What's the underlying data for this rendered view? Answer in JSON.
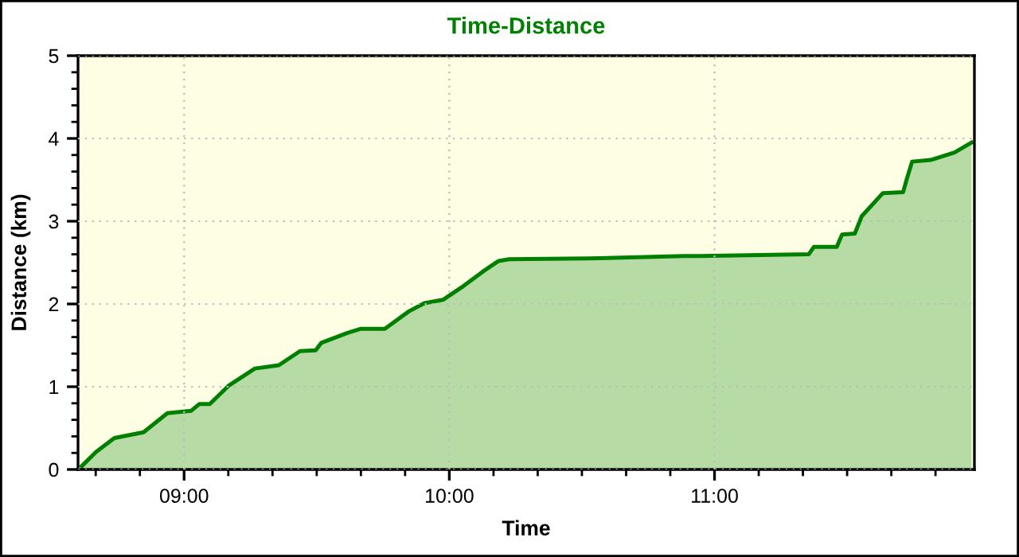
{
  "chart_data": {
    "type": "area",
    "title": "Time-Distance",
    "xlabel": "Time",
    "ylabel": "Distance (km)",
    "x": [
      8.614,
      8.667,
      8.737,
      8.847,
      8.937,
      9.027,
      9.057,
      9.097,
      9.167,
      9.267,
      9.357,
      9.437,
      9.496,
      9.517,
      9.616,
      9.667,
      9.757,
      9.847,
      9.906,
      9.976,
      10.046,
      10.126,
      10.186,
      10.226,
      10.526,
      10.886,
      10.945,
      11.355,
      11.375,
      11.461,
      11.481,
      11.529,
      11.555,
      11.635,
      11.711,
      11.725,
      11.745,
      11.815,
      11.905,
      11.969
    ],
    "series": [
      {
        "color": "#008000",
        "values": [
          0.04,
          0.21,
          0.38,
          0.45,
          0.68,
          0.71,
          0.79,
          0.79,
          1.01,
          1.22,
          1.26,
          1.43,
          1.44,
          1.53,
          1.65,
          1.7,
          1.7,
          1.91,
          2.01,
          2.05,
          2.2,
          2.39,
          2.52,
          2.54,
          2.55,
          2.58,
          2.58,
          2.6,
          2.69,
          2.69,
          2.84,
          2.85,
          3.06,
          3.34,
          3.35,
          3.51,
          3.72,
          3.74,
          3.83,
          3.95
        ]
      }
    ],
    "xlim": [
      8.6,
      11.98
    ],
    "xticks": [
      {
        "value": 8.6667,
        "label": null
      },
      {
        "value": 8.8333,
        "label": null
      },
      {
        "value": 9,
        "label": "09:00"
      },
      {
        "value": 9.1667,
        "label": null
      },
      {
        "value": 9.3333,
        "label": null
      },
      {
        "value": 9.5,
        "label": null
      },
      {
        "value": 9.6667,
        "label": null
      },
      {
        "value": 9.8333,
        "label": null
      },
      {
        "value": 10,
        "label": "10:00"
      },
      {
        "value": 10.1667,
        "label": null
      },
      {
        "value": 10.3333,
        "label": null
      },
      {
        "value": 10.5,
        "label": null
      },
      {
        "value": 10.6667,
        "label": null
      },
      {
        "value": 10.8333,
        "label": null
      },
      {
        "value": 11,
        "label": "11:00"
      },
      {
        "value": 11.1667,
        "label": null
      },
      {
        "value": 11.3333,
        "label": null
      },
      {
        "value": 11.5,
        "label": null
      },
      {
        "value": 11.6667,
        "label": null
      },
      {
        "value": 11.8333,
        "label": null
      }
    ],
    "ylim": [
      0,
      5
    ],
    "yticks": [
      0,
      {
        "value": 0.2,
        "label": null
      },
      {
        "value": 0.4,
        "label": null
      },
      {
        "value": 0.6,
        "label": null
      },
      {
        "value": 0.8,
        "label": null
      },
      1,
      {
        "value": 1.2,
        "label": null
      },
      {
        "value": 1.4,
        "label": null
      },
      {
        "value": 1.6,
        "label": null
      },
      {
        "value": 1.8,
        "label": null
      },
      2,
      {
        "value": 2.2,
        "label": null
      },
      {
        "value": 2.4,
        "label": null
      },
      {
        "value": 2.6,
        "label": null
      },
      {
        "value": 2.8,
        "label": null
      },
      3,
      {
        "value": 3.2,
        "label": null
      },
      {
        "value": 3.4,
        "label": null
      },
      {
        "value": 3.6,
        "label": null
      },
      {
        "value": 3.8,
        "label": null
      },
      4,
      {
        "value": 4.2,
        "label": null
      },
      {
        "value": 4.4,
        "label": null
      },
      {
        "value": 4.6,
        "label": null
      },
      {
        "value": 4.8,
        "label": null
      },
      5
    ],
    "grid": true,
    "line_style": "solid"
  }
}
